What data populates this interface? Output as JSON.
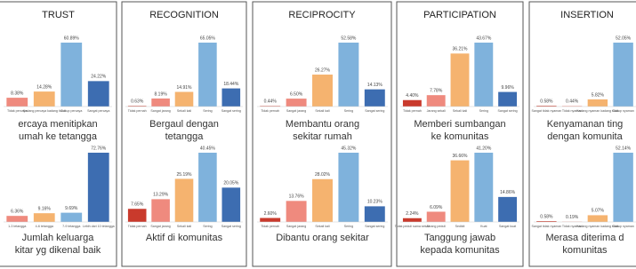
{
  "panels": [
    {
      "title": "TRUST",
      "charts": [
        {
          "type": "bar",
          "caption": [
            "ercaya menitipkan",
            "umah ke tetangga"
          ],
          "categories": [
            "Tidak percaya",
            "Kadang percaya kadang tidak",
            "Cukup percaya",
            "Sangat percaya"
          ],
          "values": [
            8.38,
            14.28,
            60.89,
            24.22
          ],
          "value_labels": [
            "8.38%",
            "14.28%",
            "60.89%",
            "24.22%"
          ],
          "colors": [
            "#ef8a7e",
            "#f5b36f",
            "#7fb2dc",
            "#3d6db1"
          ]
        },
        {
          "type": "bar",
          "caption": [
            "Jumlah keluarga",
            "kitar yg dikenal baik"
          ],
          "categories": [
            "1-3 tetangga",
            "4-6 tetangga",
            "7-9 tetangga",
            "Lebih dari 10 tetangga"
          ],
          "values": [
            6.36,
            9.16,
            9.69,
            72.76
          ],
          "value_labels": [
            "6.36%",
            "9.16%",
            "9.69%",
            "72.76%"
          ],
          "colors": [
            "#ef8a7e",
            "#f5b36f",
            "#7fb2dc",
            "#3d6db1"
          ]
        }
      ]
    },
    {
      "title": "RECOGNITION",
      "charts": [
        {
          "type": "bar",
          "caption": [
            "Bergaul dengan",
            "tetangga"
          ],
          "categories": [
            "Tidak pernah",
            "Sangat jarang",
            "Sekali kali",
            "Sering",
            "Sangat sering"
          ],
          "values": [
            0.63,
            8.19,
            14.91,
            65.05,
            18.44
          ],
          "value_labels": [
            "0.63%",
            "8.19%",
            "14.91%",
            "65.05%",
            "18.44%"
          ],
          "colors": [
            "#c93a2c",
            "#ef8a7e",
            "#f5b36f",
            "#7fb2dc",
            "#3d6db1"
          ]
        },
        {
          "type": "bar",
          "caption": [
            "Aktif di komunitas"
          ],
          "categories": [
            "Tidak pernah",
            "Sangat jarang",
            "Sekali kali",
            "Sering",
            "Sangat sering"
          ],
          "values": [
            7.65,
            13.29,
            25.19,
            40.45,
            20.05
          ],
          "value_labels": [
            "7.65%",
            "13.29%",
            "25.19%",
            "40.45%",
            "20.05%"
          ],
          "colors": [
            "#c93a2c",
            "#ef8a7e",
            "#f5b36f",
            "#7fb2dc",
            "#3d6db1"
          ]
        }
      ]
    },
    {
      "title": "RECIPROCITY",
      "charts": [
        {
          "type": "bar",
          "caption": [
            "Membantu orang",
            "sekitar rumah"
          ],
          "categories": [
            "Tidak pernah",
            "Sangat jarang",
            "Sekali kali",
            "Sering",
            "Sangat sering"
          ],
          "values": [
            0.44,
            6.5,
            26.27,
            52.58,
            14.13
          ],
          "value_labels": [
            "0.44%",
            "6.50%",
            "26.27%",
            "52.58%",
            "14.13%"
          ],
          "colors": [
            "#c93a2c",
            "#ef8a7e",
            "#f5b36f",
            "#7fb2dc",
            "#3d6db1"
          ]
        },
        {
          "type": "bar",
          "caption": [
            "Dibantu orang sekitar"
          ],
          "categories": [
            "Tidak pernah",
            "Sangat jarang",
            "Sekali kali",
            "Sering",
            "Sangat sering"
          ],
          "values": [
            2.6,
            13.76,
            28.02,
            45.32,
            10.23
          ],
          "value_labels": [
            "2.60%",
            "13.76%",
            "28.02%",
            "45.32%",
            "10.23%"
          ],
          "colors": [
            "#c93a2c",
            "#ef8a7e",
            "#f5b36f",
            "#7fb2dc",
            "#3d6db1"
          ]
        }
      ]
    },
    {
      "title": "PARTICIPATION",
      "charts": [
        {
          "type": "bar",
          "caption": [
            "Memberi sumbangan",
            "ke komunitas"
          ],
          "categories": [
            "Tidak pernah",
            "Jarang sekali",
            "Sekali kali",
            "Sering",
            "Sangat sering"
          ],
          "values": [
            4.4,
            7.78,
            36.21,
            43.67,
            9.96
          ],
          "value_labels": [
            "4.40%",
            "7.78%",
            "36.21%",
            "43.67%",
            "9.96%"
          ],
          "colors": [
            "#c93a2c",
            "#ef8a7e",
            "#f5b36f",
            "#7fb2dc",
            "#3d6db1"
          ]
        },
        {
          "type": "bar",
          "caption": [
            "Tanggung jawab",
            "kepada komunitas"
          ],
          "categories": [
            "Tidak peduli sama sekali",
            "Jarang peduli",
            "Sedikit",
            "Kuat",
            "Sangat kuat"
          ],
          "values": [
            2.24,
            6.09,
            36.66,
            41.2,
            14.86
          ],
          "value_labels": [
            "2.24%",
            "6.09%",
            "36.66%",
            "41.20%",
            "14.86%"
          ],
          "colors": [
            "#c93a2c",
            "#ef8a7e",
            "#f5b36f",
            "#7fb2dc",
            "#3d6db1"
          ]
        }
      ]
    },
    {
      "title": "INSERTION",
      "charts": [
        {
          "type": "bar",
          "caption": [
            "Kenyamanan ting",
            "dengan komunita"
          ],
          "categories": [
            "Sangat tidak nyaman",
            "Tidak nyaman",
            "Kadang nyaman kadang tidak",
            "Cukup nyaman"
          ],
          "values": [
            0.58,
            0.44,
            5.82,
            52.05
          ],
          "value_labels": [
            "0.58%",
            "0.44%",
            "5.82%",
            "52.05%"
          ],
          "colors": [
            "#c93a2c",
            "#ef8a7e",
            "#f5b36f",
            "#7fb2dc"
          ]
        },
        {
          "type": "bar",
          "caption": [
            "Merasa diterima d",
            "komunitas"
          ],
          "categories": [
            "Sangat tidak nyaman",
            "Tidak nyaman",
            "Kadang nyaman kadang tidak",
            "Cukup nyaman"
          ],
          "values": [
            0.58,
            0.19,
            5.07,
            52.14
          ],
          "value_labels": [
            "0.58%",
            "0.19%",
            "5.07%",
            "52.14%"
          ],
          "colors": [
            "#c93a2c",
            "#ef8a7e",
            "#f5b36f",
            "#7fb2dc"
          ]
        }
      ]
    }
  ]
}
